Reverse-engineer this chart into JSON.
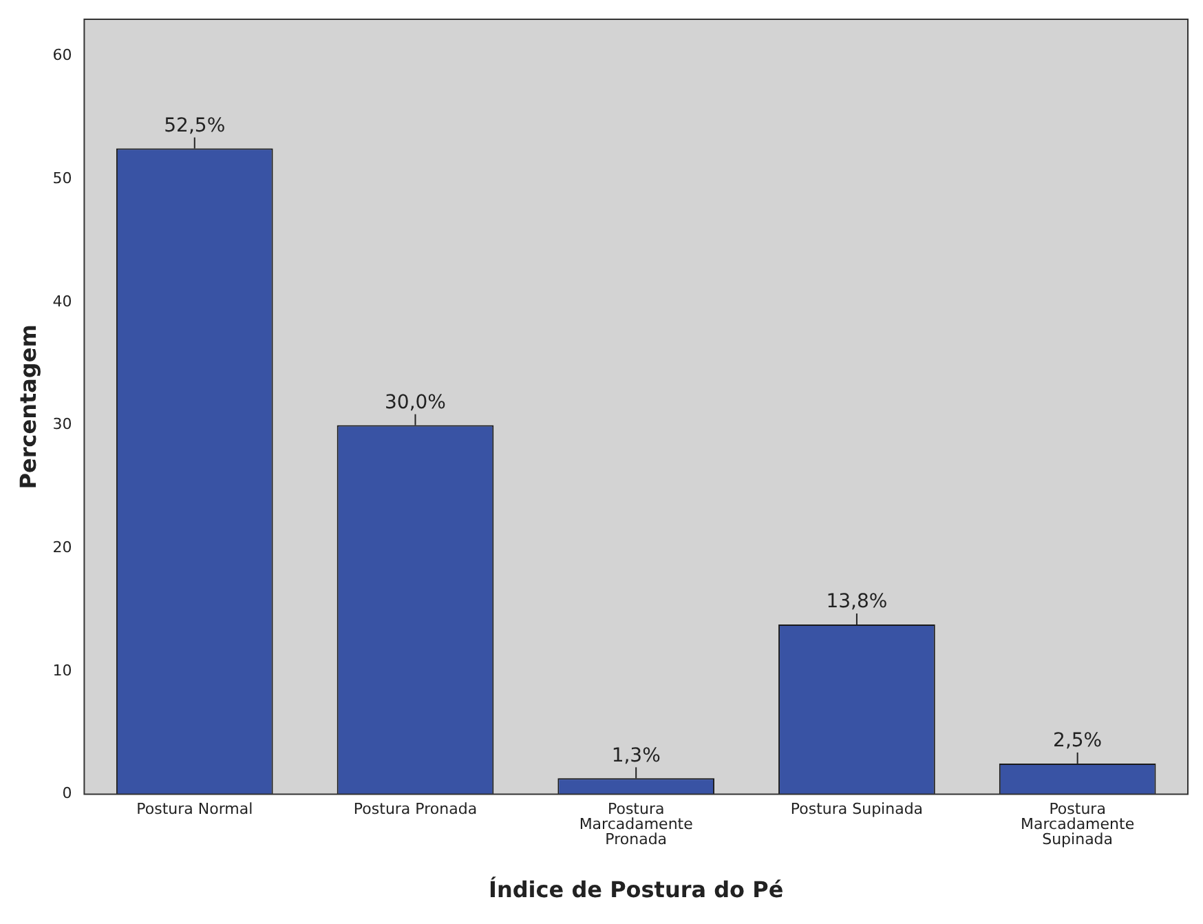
{
  "chart_data": {
    "type": "bar",
    "xlabel": "Índice de Postura do Pé",
    "ylabel": "Percentagem",
    "categories": [
      "Postura Normal",
      "Postura Pronada",
      "Postura Marcadamente Pronada",
      "Postura Supinada",
      "Postura Marcadamente Supinada"
    ],
    "values": [
      52.5,
      30.0,
      1.3,
      13.8,
      2.5
    ],
    "value_labels": [
      "52,5%",
      "30,0%",
      "1,3%",
      "13,8%",
      "2,5%"
    ],
    "color": "#3953a4",
    "ylim": [
      0,
      63
    ],
    "yticks": [
      0,
      10,
      20,
      30,
      40,
      50,
      60
    ],
    "grid": false,
    "legend": false
  }
}
